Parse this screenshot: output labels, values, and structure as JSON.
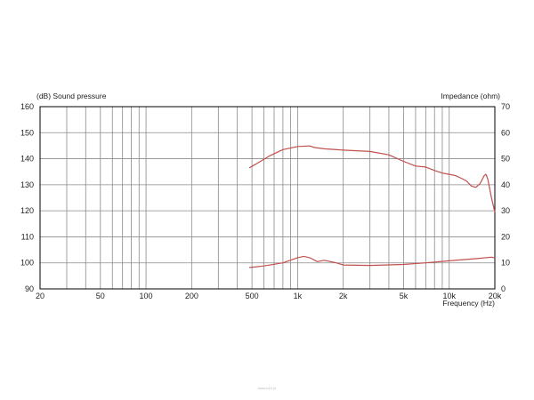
{
  "chart_data": {
    "type": "line",
    "left_axis_title": "(dB)  Sound pressure",
    "right_axis_title": "Impedance  (ohm)",
    "xlabel": "Frequency  (Hz)",
    "x_scale": "log",
    "xlim": [
      20,
      20000
    ],
    "ylim_left": [
      90,
      160
    ],
    "ylim_right": [
      0,
      70
    ],
    "x_tick_labels": [
      "20",
      "50",
      "100",
      "200",
      "500",
      "1k",
      "2k",
      "5k",
      "10k",
      "20k"
    ],
    "y_left_tick_labels": [
      "160",
      "150",
      "140",
      "130",
      "120",
      "110",
      "100",
      "90"
    ],
    "y_right_tick_labels": [
      "70",
      "60",
      "50",
      "40",
      "30",
      "20",
      "10",
      "0"
    ],
    "grid": true,
    "line_color": "#c0504d",
    "series": [
      {
        "axis": "left",
        "x": [
          480,
          550,
          650,
          800,
          1000,
          1200,
          1300,
          1500,
          2000,
          3000,
          4000,
          5000,
          6000,
          7000,
          8000,
          9000,
          10000,
          11000,
          12000,
          13000,
          14000,
          15000,
          16000,
          17000,
          17500,
          18000,
          19000,
          20000
        ],
        "y": [
          136.5,
          138.5,
          141.0,
          143.5,
          144.7,
          144.9,
          144.3,
          143.8,
          143.3,
          142.8,
          141.5,
          139.0,
          137.2,
          136.8,
          135.5,
          134.5,
          134.0,
          133.5,
          132.5,
          131.5,
          129.5,
          129.0,
          130.5,
          133.5,
          134.0,
          132.0,
          125.0,
          119.5
        ]
      },
      {
        "axis": "right",
        "x": [
          480,
          600,
          800,
          1000,
          1100,
          1200,
          1350,
          1500,
          1800,
          2000,
          3000,
          5000,
          7000,
          10000,
          15000,
          19000,
          20000
        ],
        "y": [
          8.2,
          8.8,
          10.0,
          12.0,
          12.5,
          12.0,
          10.5,
          11.0,
          10.0,
          9.2,
          9.0,
          9.4,
          10.0,
          10.8,
          11.6,
          12.2,
          11.9
        ]
      }
    ]
  },
  "watermark_text": "www.b10.pl"
}
